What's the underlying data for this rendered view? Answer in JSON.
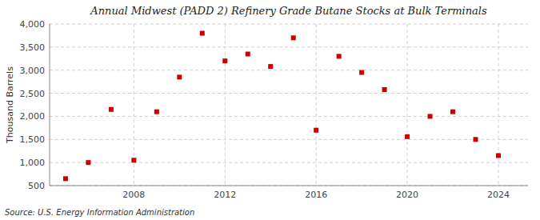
{
  "chart_data": {
    "type": "scatter",
    "title": "Annual Midwest (PADD 2) Refinery Grade Butane Stocks at Bulk Terminals",
    "y_label": "Thousand Barrels",
    "annotations": [
      "Source: U.S. Energy Information Administration"
    ],
    "x": [
      2005,
      2006,
      2007,
      2008,
      2009,
      2010,
      2011,
      2012,
      2013,
      2014,
      2015,
      2016,
      2017,
      2018,
      2019,
      2020,
      2021,
      2022,
      2023,
      2024
    ],
    "values": [
      650,
      1000,
      2150,
      1050,
      2100,
      2850,
      3800,
      3200,
      3350,
      3080,
      3700,
      1700,
      3300,
      2950,
      2580,
      1560,
      2000,
      2100,
      1500,
      1150
    ],
    "color": "#cc0000",
    "marker": "square",
    "xlim": [
      2004.3,
      2025.3
    ],
    "xticks": [
      2008,
      2012,
      2016,
      2020,
      2024
    ],
    "ylim": [
      500,
      4000
    ],
    "yticks": [
      500,
      {
        "value": 1000,
        "label": "1,000"
      },
      {
        "value": 1500,
        "label": "1,500"
      },
      {
        "value": 2000,
        "label": "2,000"
      },
      {
        "value": 2500,
        "label": "2,500"
      },
      {
        "value": 3000,
        "label": "3,000"
      },
      {
        "value": 3500,
        "label": "3,500"
      },
      {
        "value": 4000,
        "label": "4,000"
      }
    ],
    "grid": true
  }
}
